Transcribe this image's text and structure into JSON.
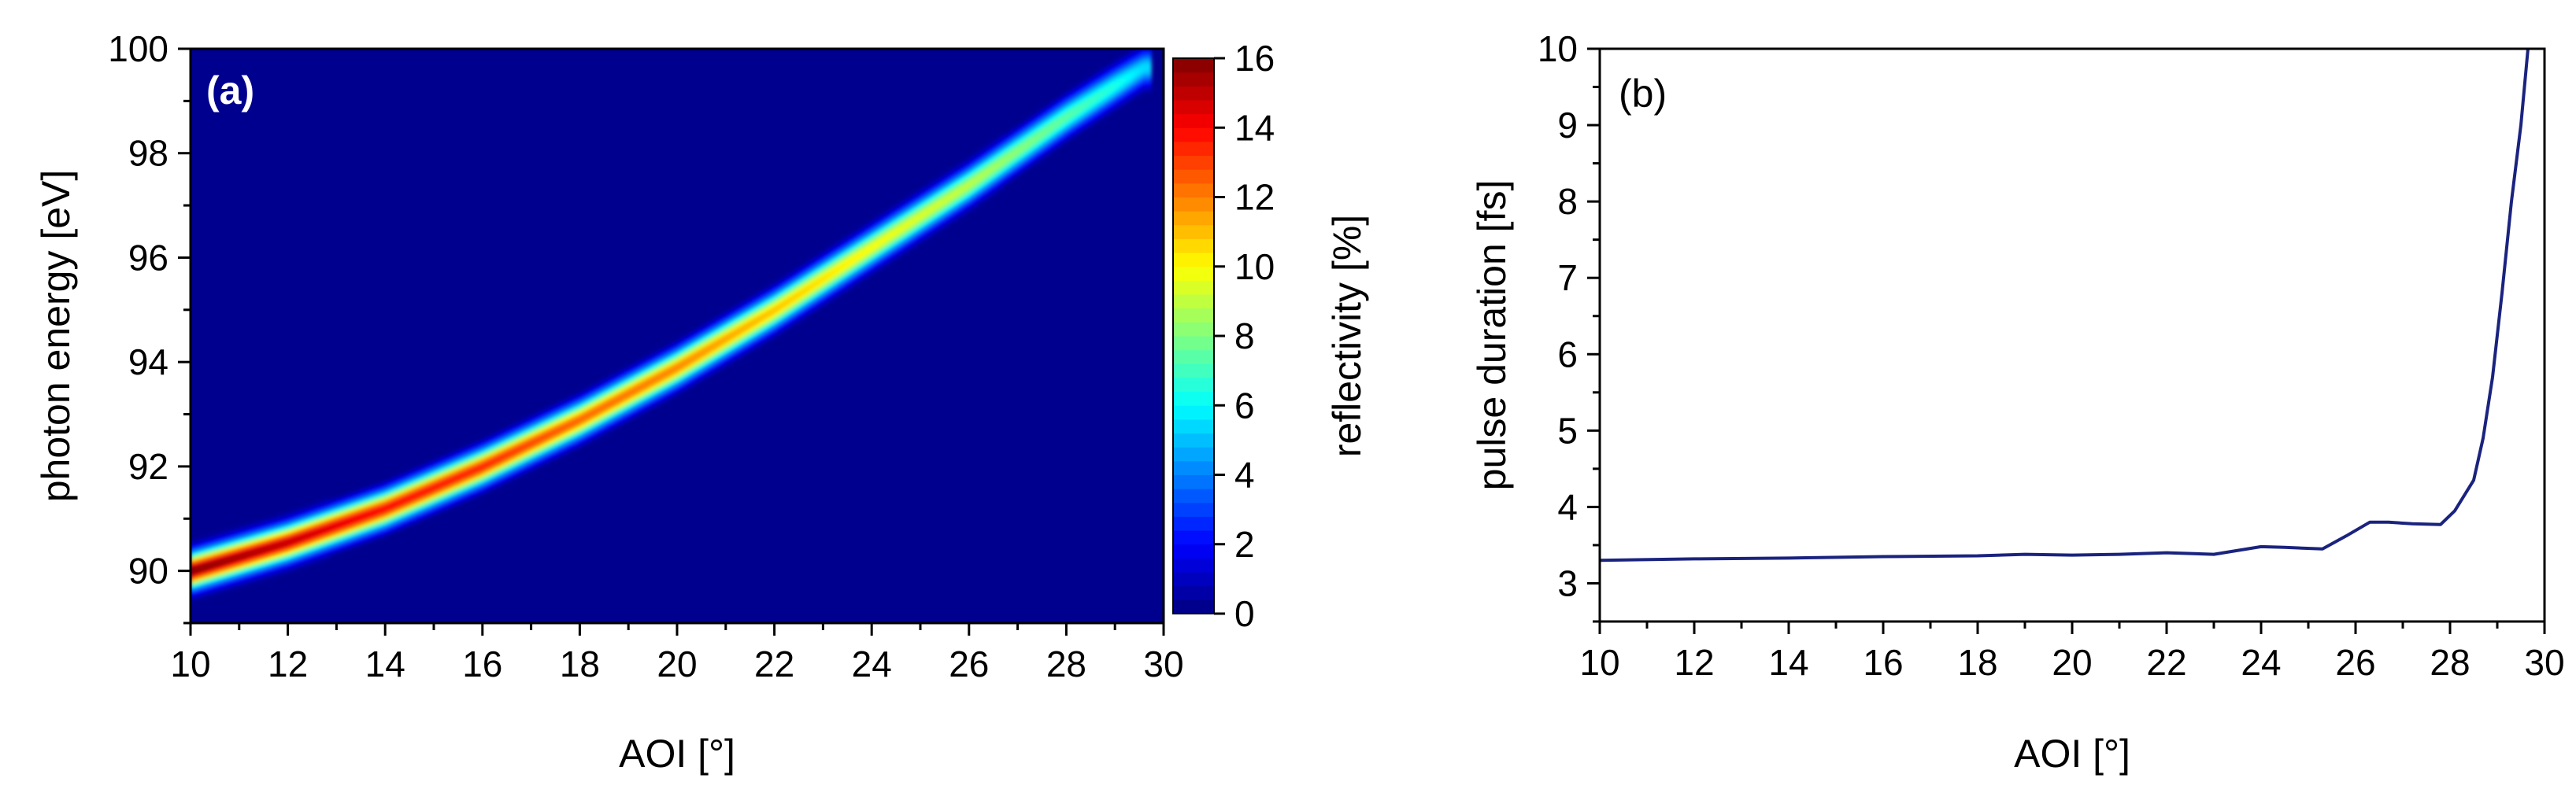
{
  "chart_data": [
    {
      "panel": "(a)",
      "type": "heatmap",
      "xlabel": "AOI [°]",
      "ylabel": "photon energy [eV]",
      "xlim": [
        10,
        30
      ],
      "ylim": [
        89,
        100
      ],
      "x_ticks": [
        "10",
        "12",
        "14",
        "16",
        "18",
        "20",
        "22",
        "24",
        "26",
        "28",
        "30"
      ],
      "y_ticks": [
        "90",
        "92",
        "94",
        "96",
        "98",
        "100"
      ],
      "colorbar": {
        "label": "reflectivity [%]",
        "range": [
          0,
          16
        ],
        "ticks": [
          "0",
          "2",
          "4",
          "6",
          "8",
          "10",
          "12",
          "14",
          "16"
        ],
        "colormap": "jet"
      },
      "ridge": {
        "x": [
          10,
          12,
          14,
          16,
          18,
          20,
          22,
          24,
          26,
          28,
          29,
          29.6
        ],
        "y": [
          90.0,
          90.55,
          91.2,
          92.0,
          92.9,
          93.9,
          95.0,
          96.2,
          97.4,
          98.7,
          99.3,
          99.65
        ],
        "peak": [
          16.0,
          15.0,
          14.0,
          13.5,
          12.5,
          12.0,
          11.0,
          10.0,
          9.0,
          7.5,
          6.5,
          5.5
        ]
      },
      "background_color": "#00008f"
    },
    {
      "panel": "(b)",
      "type": "line",
      "xlabel": "AOI [°]",
      "ylabel": "pulse duration [fs]",
      "xlim": [
        10,
        30
      ],
      "ylim": [
        2.5,
        10
      ],
      "x_ticks": [
        "10",
        "12",
        "14",
        "16",
        "18",
        "20",
        "22",
        "24",
        "26",
        "28",
        "30"
      ],
      "y_ticks": [
        "3",
        "4",
        "5",
        "6",
        "7",
        "8",
        "9",
        "10"
      ],
      "line_color": "#1a237e",
      "series": [
        {
          "x": [
            10,
            12,
            14,
            16,
            18,
            19,
            20,
            21,
            22,
            23,
            24,
            24.5,
            25.3,
            25.8,
            26.3,
            26.7,
            27.2,
            27.8,
            28.1,
            28.5,
            28.7,
            28.9,
            29.1,
            29.3,
            29.5,
            29.65
          ],
          "y": [
            3.3,
            3.32,
            3.33,
            3.35,
            3.36,
            3.38,
            3.37,
            3.38,
            3.4,
            3.38,
            3.48,
            3.47,
            3.45,
            3.62,
            3.8,
            3.8,
            3.78,
            3.77,
            3.95,
            4.35,
            4.9,
            5.7,
            6.8,
            8.0,
            9.0,
            10.0
          ]
        }
      ]
    }
  ]
}
